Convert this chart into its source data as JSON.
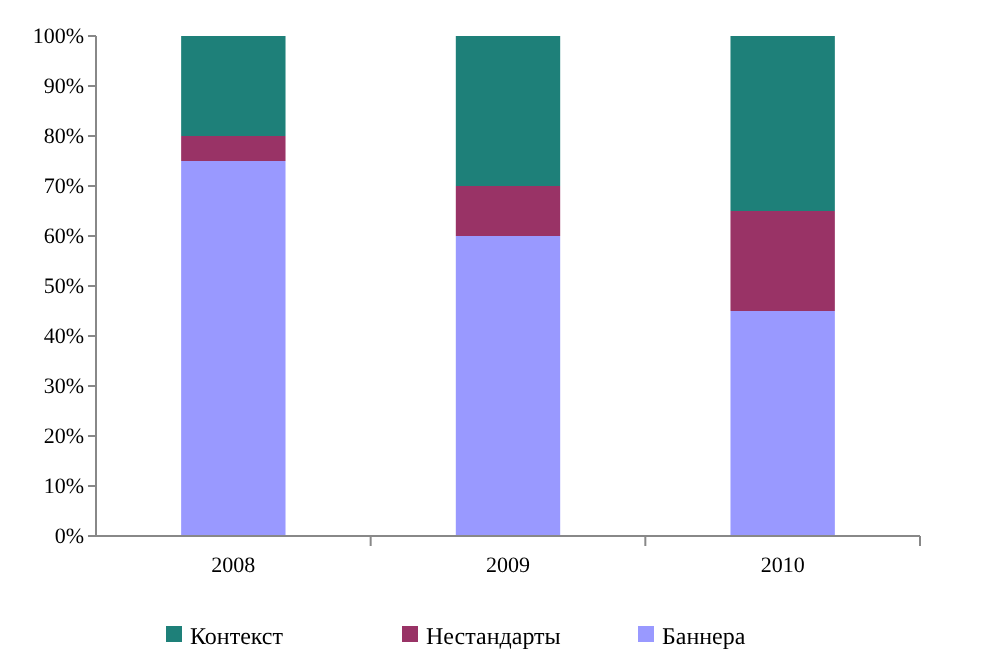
{
  "chart_data": {
    "type": "bar",
    "stacked": true,
    "categories": [
      "2008",
      "2009",
      "2010"
    ],
    "series": [
      {
        "name": "Баннера",
        "color": "#9999ff",
        "values": [
          75,
          60,
          45
        ]
      },
      {
        "name": "Нестандарты",
        "color": "#993366",
        "values": [
          5,
          10,
          20
        ]
      },
      {
        "name": "Контекст",
        "color": "#1e8079",
        "values": [
          20,
          30,
          35
        ]
      }
    ],
    "ylim": [
      0,
      100
    ],
    "yticks": [
      {
        "value": 0,
        "label": "0%"
      },
      {
        "value": 10,
        "label": "10%"
      },
      {
        "value": 20,
        "label": "20%"
      },
      {
        "value": 30,
        "label": "30%"
      },
      {
        "value": 40,
        "label": "40%"
      },
      {
        "value": 50,
        "label": "50%"
      },
      {
        "value": 60,
        "label": "60%"
      },
      {
        "value": 70,
        "label": "70%"
      },
      {
        "value": 80,
        "label": "80%"
      },
      {
        "value": 90,
        "label": "90%"
      },
      {
        "value": 100,
        "label": "100%"
      }
    ],
    "grid": false,
    "legend": "bottom"
  }
}
